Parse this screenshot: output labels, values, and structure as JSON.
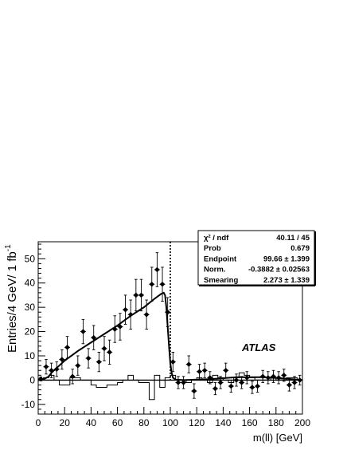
{
  "chart_data": {
    "type": "scatter",
    "title": "",
    "xlabel": "m(ll) [GeV]",
    "ylabel": "Entries/4 GeV/ 1 fb",
    "ylabel_sup": "-1",
    "xlim": [
      0,
      200
    ],
    "ylim": [
      -14,
      57
    ],
    "x_ticks": [
      0,
      20,
      40,
      60,
      80,
      100,
      120,
      140,
      160,
      180,
      200
    ],
    "y_ticks": [
      -10,
      0,
      10,
      20,
      30,
      40,
      50
    ],
    "grid": false,
    "annotation": "ATLAS",
    "endpoint_marker_x": 100,
    "stats_box": [
      {
        "key": "χ² / ndf",
        "value": "40.11 / 45"
      },
      {
        "key": "Prob",
        "value": "0.679"
      },
      {
        "key": "Endpoint",
        "value": "99.66 ± 1.399"
      },
      {
        "key": "Norm.",
        "value": "-0.3882 ± 0.02563"
      },
      {
        "key": "Smearing",
        "value": "2.273 ± 1.339"
      }
    ],
    "points": [
      {
        "x": 2,
        "y": 0.5,
        "err": 0.8
      },
      {
        "x": 6,
        "y": 5.5,
        "err": 3
      },
      {
        "x": 10,
        "y": 4,
        "err": 3
      },
      {
        "x": 14,
        "y": 4.5,
        "err": 3
      },
      {
        "x": 18,
        "y": 8.5,
        "err": 4
      },
      {
        "x": 22,
        "y": 13.5,
        "err": 4.5
      },
      {
        "x": 26,
        "y": 1.5,
        "err": 3
      },
      {
        "x": 30,
        "y": 6,
        "err": 4
      },
      {
        "x": 34,
        "y": 20,
        "err": 5
      },
      {
        "x": 38,
        "y": 9,
        "err": 4
      },
      {
        "x": 42,
        "y": 17.5,
        "err": 5
      },
      {
        "x": 46,
        "y": 7.5,
        "err": 4
      },
      {
        "x": 50,
        "y": 13,
        "err": 5
      },
      {
        "x": 54,
        "y": 11.5,
        "err": 5
      },
      {
        "x": 58,
        "y": 21,
        "err": 5.5
      },
      {
        "x": 62,
        "y": 22,
        "err": 5.5
      },
      {
        "x": 66,
        "y": 29,
        "err": 6
      },
      {
        "x": 70,
        "y": 27,
        "err": 6
      },
      {
        "x": 74,
        "y": 35,
        "err": 6.5
      },
      {
        "x": 78,
        "y": 35,
        "err": 6.5
      },
      {
        "x": 82,
        "y": 27,
        "err": 6
      },
      {
        "x": 86,
        "y": 39.5,
        "err": 7
      },
      {
        "x": 90,
        "y": 45.5,
        "err": 7
      },
      {
        "x": 94,
        "y": 39.5,
        "err": 7
      },
      {
        "x": 98,
        "y": 28,
        "err": 6
      },
      {
        "x": 102,
        "y": 7.5,
        "err": 4
      },
      {
        "x": 106,
        "y": -1,
        "err": 2.5
      },
      {
        "x": 110,
        "y": -1,
        "err": 2.5
      },
      {
        "x": 114,
        "y": 6.5,
        "err": 3.5
      },
      {
        "x": 118,
        "y": -4.5,
        "err": 3
      },
      {
        "x": 122,
        "y": 3.5,
        "err": 3
      },
      {
        "x": 126,
        "y": 4,
        "err": 3
      },
      {
        "x": 130,
        "y": 1,
        "err": 2.5
      },
      {
        "x": 134,
        "y": -3.5,
        "err": 2.5
      },
      {
        "x": 138,
        "y": -1,
        "err": 2.5
      },
      {
        "x": 142,
        "y": 4,
        "err": 3
      },
      {
        "x": 146,
        "y": -2.5,
        "err": 2.5
      },
      {
        "x": 150,
        "y": 0,
        "err": 2.5
      },
      {
        "x": 154,
        "y": -1,
        "err": 2.5
      },
      {
        "x": 158,
        "y": 1,
        "err": 2.5
      },
      {
        "x": 162,
        "y": -3,
        "err": 2.5
      },
      {
        "x": 166,
        "y": -2.5,
        "err": 2.5
      },
      {
        "x": 170,
        "y": 1.5,
        "err": 2.5
      },
      {
        "x": 174,
        "y": 1,
        "err": 2.5
      },
      {
        "x": 178,
        "y": 1.5,
        "err": 2.5
      },
      {
        "x": 182,
        "y": 1,
        "err": 2.5
      },
      {
        "x": 186,
        "y": 2,
        "err": 2.5
      },
      {
        "x": 190,
        "y": -2,
        "err": 2.5
      },
      {
        "x": 194,
        "y": -1,
        "err": 2.5
      },
      {
        "x": 198,
        "y": 0,
        "err": 2
      }
    ],
    "fit_curve": [
      [
        0,
        0
      ],
      [
        4,
        0.3
      ],
      [
        8,
        1.5
      ],
      [
        10,
        3
      ],
      [
        14,
        5
      ],
      [
        20,
        8
      ],
      [
        30,
        12
      ],
      [
        40,
        15.5
      ],
      [
        50,
        19
      ],
      [
        60,
        22.5
      ],
      [
        70,
        26.5
      ],
      [
        80,
        30
      ],
      [
        88,
        33.5
      ],
      [
        93,
        35.5
      ],
      [
        95,
        36
      ],
      [
        96,
        35
      ],
      [
        97,
        30
      ],
      [
        98,
        22
      ],
      [
        99,
        14
      ],
      [
        100,
        7
      ],
      [
        101,
        3
      ],
      [
        102,
        1
      ],
      [
        104,
        0.2
      ],
      [
        110,
        0
      ],
      [
        130,
        0.4
      ],
      [
        150,
        1.2
      ],
      [
        170,
        1.2
      ],
      [
        185,
        0.7
      ],
      [
        200,
        0
      ]
    ],
    "background_hist": [
      0,
      1,
      2,
      0,
      -2,
      -2,
      1,
      1,
      0,
      0,
      -2,
      -3,
      -3,
      -2,
      -2,
      -1,
      0,
      2,
      0,
      -1,
      -1,
      -8,
      2,
      -3,
      1,
      2,
      0,
      0,
      -1,
      0,
      1,
      0,
      -1,
      2,
      1,
      0,
      -1,
      1,
      3,
      2,
      1,
      0,
      0,
      0,
      1,
      0,
      0,
      1,
      1,
      0
    ]
  }
}
